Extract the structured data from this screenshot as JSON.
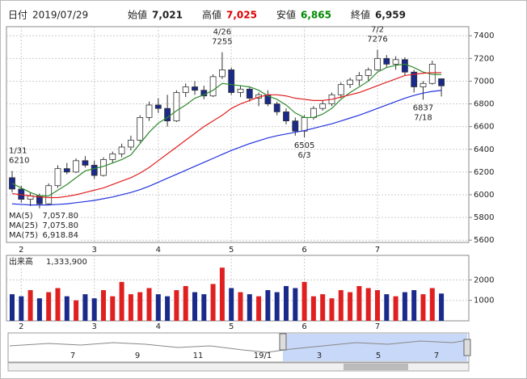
{
  "header": {
    "date_label": "日付",
    "date": "2019/07/29",
    "open_label": "始値",
    "open": "7,021",
    "high_label": "高値",
    "high": "7,025",
    "low_label": "安値",
    "low": "6,865",
    "close_label": "終値",
    "close": "6,959"
  },
  "chart_data": [
    {
      "type": "candlestick",
      "categories": [
        null,
        "2",
        null,
        null,
        null,
        null,
        null,
        null,
        null,
        "3",
        null,
        null,
        null,
        null,
        null,
        null,
        "4",
        null,
        null,
        null,
        null,
        null,
        null,
        null,
        "5",
        null,
        null,
        null,
        null,
        null,
        null,
        null,
        "6",
        null,
        null,
        null,
        null,
        null,
        null,
        null,
        "7",
        null,
        null,
        null,
        null,
        null,
        null,
        null
      ],
      "ohlc": [
        [
          6150,
          6210,
          6020,
          6050
        ],
        [
          6050,
          6080,
          5930,
          5960
        ],
        [
          5960,
          6020,
          5900,
          5990
        ],
        [
          5990,
          6010,
          5880,
          5920
        ],
        [
          5920,
          6100,
          5910,
          6080
        ],
        [
          6080,
          6260,
          6060,
          6230
        ],
        [
          6230,
          6280,
          6180,
          6200
        ],
        [
          6200,
          6320,
          6190,
          6300
        ],
        [
          6300,
          6340,
          6240,
          6260
        ],
        [
          6260,
          6300,
          6140,
          6170
        ],
        [
          6170,
          6330,
          6160,
          6310
        ],
        [
          6310,
          6380,
          6280,
          6360
        ],
        [
          6360,
          6450,
          6330,
          6420
        ],
        [
          6420,
          6520,
          6390,
          6480
        ],
        [
          6480,
          6700,
          6460,
          6680
        ],
        [
          6680,
          6820,
          6650,
          6790
        ],
        [
          6790,
          6850,
          6720,
          6760
        ],
        [
          6760,
          6880,
          6600,
          6650
        ],
        [
          6650,
          6920,
          6640,
          6900
        ],
        [
          6900,
          6980,
          6860,
          6950
        ],
        [
          6950,
          7000,
          6880,
          6920
        ],
        [
          6920,
          6960,
          6840,
          6870
        ],
        [
          6870,
          7060,
          6860,
          7040
        ],
        [
          7040,
          7255,
          7020,
          7100
        ],
        [
          7100,
          7120,
          6880,
          6900
        ],
        [
          6900,
          6960,
          6860,
          6930
        ],
        [
          6930,
          6950,
          6820,
          6850
        ],
        [
          6850,
          6900,
          6780,
          6880
        ],
        [
          6880,
          6920,
          6780,
          6800
        ],
        [
          6800,
          6820,
          6700,
          6730
        ],
        [
          6730,
          6760,
          6620,
          6650
        ],
        [
          6650,
          6680,
          6520,
          6560
        ],
        [
          6560,
          6700,
          6505,
          6680
        ],
        [
          6680,
          6780,
          6660,
          6760
        ],
        [
          6760,
          6830,
          6740,
          6800
        ],
        [
          6800,
          6900,
          6780,
          6880
        ],
        [
          6880,
          6990,
          6850,
          6970
        ],
        [
          6970,
          7030,
          6940,
          7010
        ],
        [
          7010,
          7080,
          6960,
          7050
        ],
        [
          7050,
          7120,
          7000,
          7100
        ],
        [
          7100,
          7276,
          7090,
          7200
        ],
        [
          7200,
          7230,
          7120,
          7150
        ],
        [
          7150,
          7220,
          7100,
          7190
        ],
        [
          7190,
          7210,
          7050,
          7080
        ],
        [
          7080,
          7100,
          6900,
          6950
        ],
        [
          6950,
          7000,
          6837,
          6980
        ],
        [
          6980,
          7180,
          6970,
          7150
        ],
        [
          7021,
          7025,
          6865,
          6959
        ]
      ],
      "up_color": "#ffffff",
      "down_color": "#1a2a8a",
      "lines": [
        {
          "name": "MA(5)",
          "color": "#2e8b2e",
          "legend_value": "7,057.80",
          "values": [
            6100,
            6060,
            6020,
            5990,
            5990,
            6040,
            6090,
            6150,
            6210,
            6230,
            6250,
            6280,
            6310,
            6350,
            6450,
            6550,
            6630,
            6680,
            6740,
            6790,
            6850,
            6880,
            6920,
            6980,
            6970,
            6960,
            6950,
            6920,
            6870,
            6840,
            6790,
            6720,
            6680,
            6680,
            6710,
            6760,
            6840,
            6900,
            6950,
            7000,
            7080,
            7120,
            7140,
            7150,
            7120,
            7080,
            7060,
            7057.8
          ]
        },
        {
          "name": "MA(25)",
          "color": "#e02020",
          "legend_value": "7,075.80",
          "values": [
            6010,
            6000,
            5990,
            5980,
            5975,
            5975,
            5985,
            6000,
            6020,
            6040,
            6060,
            6090,
            6120,
            6150,
            6190,
            6240,
            6300,
            6360,
            6420,
            6480,
            6540,
            6600,
            6650,
            6700,
            6760,
            6800,
            6830,
            6860,
            6880,
            6880,
            6870,
            6850,
            6840,
            6830,
            6830,
            6840,
            6860,
            6880,
            6900,
            6930,
            6960,
            6990,
            7020,
            7050,
            7060,
            7070,
            7075,
            7075.8
          ]
        },
        {
          "name": "MA(75)",
          "color": "#2233dd",
          "legend_value": "6,918.84",
          "values": [
            5920,
            5915,
            5910,
            5910,
            5910,
            5915,
            5920,
            5930,
            5940,
            5950,
            5965,
            5980,
            6000,
            6020,
            6045,
            6075,
            6110,
            6145,
            6180,
            6215,
            6250,
            6285,
            6320,
            6355,
            6390,
            6420,
            6450,
            6475,
            6500,
            6520,
            6535,
            6550,
            6565,
            6585,
            6605,
            6625,
            6650,
            6675,
            6700,
            6730,
            6760,
            6790,
            6820,
            6850,
            6875,
            6895,
            6910,
            6918.84
          ]
        }
      ],
      "annotations": [
        {
          "date": "1/31",
          "value": 6210
        },
        {
          "date": "4/26",
          "value": 7255
        },
        {
          "date": "6/3",
          "value": 6505
        },
        {
          "date": "7/2",
          "value": 7276
        },
        {
          "date": "7/18",
          "value": 6837
        }
      ],
      "ylim": [
        5580,
        7480
      ],
      "yticks": [
        5600,
        5800,
        6000,
        6200,
        6400,
        6600,
        6800,
        7000,
        7200,
        7400
      ],
      "grid": true
    },
    {
      "type": "bar",
      "title": "出来高",
      "current": "1,333,900",
      "up_color": "#e02020",
      "down_color": "#1a2a8a",
      "values": [
        1300,
        1200,
        1500,
        1100,
        1400,
        1600,
        1200,
        1000,
        1300,
        1100,
        1500,
        1200,
        1900,
        1300,
        1400,
        1600,
        1300,
        1200,
        1500,
        1700,
        1400,
        1300,
        1800,
        2600,
        1600,
        1400,
        1300,
        1200,
        1500,
        1400,
        1700,
        1600,
        1900,
        1200,
        1300,
        1100,
        1500,
        1400,
        1700,
        1600,
        1500,
        1300,
        1200,
        1400,
        1500,
        1300,
        1600,
        1334
      ],
      "ylim": [
        0,
        3200
      ],
      "yticks": [
        1000,
        2000
      ],
      "grid": true
    }
  ],
  "navigator": {
    "labels": [
      "7",
      "9",
      "11",
      "19/1",
      "3",
      "5",
      "7"
    ]
  }
}
